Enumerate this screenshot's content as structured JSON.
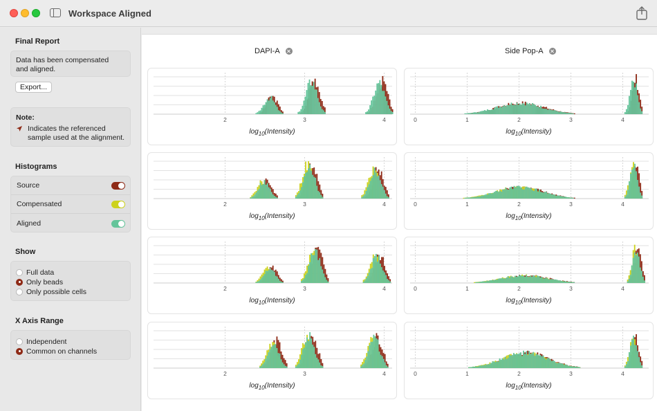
{
  "window": {
    "title": "Workspace Aligned"
  },
  "sidebar": {
    "final_report": {
      "title": "Final Report",
      "message_line1": "Data has been compensated",
      "message_line2": "and aligned.",
      "export_label": "Export..."
    },
    "note": {
      "title": "Note:",
      "line1": "Indicates the referenced",
      "line2": "sample used at the alignment."
    },
    "histograms": {
      "title": "Histograms",
      "items": [
        {
          "label": "Source",
          "on": true,
          "color": "#8e2a16"
        },
        {
          "label": "Compensated",
          "on": true,
          "color": "#cdd21d"
        },
        {
          "label": "Aligned",
          "on": true,
          "color": "#64c49a"
        }
      ]
    },
    "show": {
      "title": "Show",
      "options": [
        "Full data",
        "Only beads",
        "Only possible cells"
      ],
      "selected": "Only beads"
    },
    "x_axis_range": {
      "title": "X Axis Range",
      "options": [
        "Independent",
        "Common on channels"
      ],
      "selected": "Common on channels"
    }
  },
  "main": {
    "columns": [
      {
        "title": "DAPI-A",
        "tick_labels": [
          "2",
          "3",
          "4"
        ]
      },
      {
        "title": "Side Pop-A",
        "tick_labels": [
          "0",
          "1",
          "2",
          "3",
          "4"
        ]
      }
    ],
    "axis_label_prefix": "log",
    "axis_label_sub": "10",
    "axis_label_suffix": "(Intensity)"
  },
  "chart_data": [
    {
      "type": "bar",
      "channel": "DAPI-A",
      "row": 1,
      "xlabel": "log10(Intensity)",
      "xlim": [
        1.1,
        4.1
      ],
      "series": [
        {
          "name": "Source",
          "color": "#8e2a16"
        },
        {
          "name": "Aligned",
          "color": "#64c49a"
        }
      ],
      "peaks": [
        {
          "center": 2.55,
          "height": 0.45
        },
        {
          "center": 3.08,
          "height": 0.9
        },
        {
          "center": 3.93,
          "height": 0.85
        }
      ]
    },
    {
      "type": "bar",
      "channel": "DAPI-A",
      "row": 2,
      "xlabel": "log10(Intensity)",
      "xlim": [
        1.1,
        4.1
      ],
      "series": [
        {
          "name": "Source",
          "color": "#8e2a16"
        },
        {
          "name": "Compensated",
          "color": "#cdd21d"
        },
        {
          "name": "Aligned",
          "color": "#64c49a"
        }
      ],
      "peaks": [
        {
          "center": 2.48,
          "height": 0.45
        },
        {
          "center": 3.05,
          "height": 0.9
        },
        {
          "center": 3.88,
          "height": 0.75
        }
      ]
    },
    {
      "type": "bar",
      "channel": "DAPI-A",
      "row": 3,
      "xlabel": "log10(Intensity)",
      "xlim": [
        1.1,
        4.1
      ],
      "series": [
        {
          "name": "Source",
          "color": "#8e2a16"
        },
        {
          "name": "Compensated",
          "color": "#cdd21d"
        },
        {
          "name": "Aligned",
          "color": "#64c49a"
        }
      ],
      "peaks": [
        {
          "center": 2.55,
          "height": 0.4
        },
        {
          "center": 3.12,
          "height": 0.85
        },
        {
          "center": 3.9,
          "height": 0.7
        }
      ]
    },
    {
      "type": "bar",
      "channel": "DAPI-A",
      "row": 4,
      "xlabel": "log10(Intensity)",
      "xlim": [
        1.1,
        4.1
      ],
      "series": [
        {
          "name": "Source",
          "color": "#8e2a16"
        },
        {
          "name": "Compensated",
          "color": "#cdd21d"
        },
        {
          "name": "Aligned",
          "color": "#64c49a"
        }
      ],
      "peaks": [
        {
          "center": 2.6,
          "height": 0.7
        },
        {
          "center": 3.05,
          "height": 0.85
        },
        {
          "center": 3.87,
          "height": 0.8
        }
      ]
    },
    {
      "type": "bar",
      "channel": "Side Pop-A",
      "row": 1,
      "xlabel": "log10(Intensity)",
      "xlim": [
        -0.1,
        4.5
      ],
      "series": [
        {
          "name": "Source",
          "color": "#8e2a16"
        },
        {
          "name": "Aligned",
          "color": "#64c49a"
        }
      ],
      "peaks": [
        {
          "center": 2.0,
          "height": 0.3,
          "wide": true
        },
        {
          "center": 4.2,
          "height": 0.9
        }
      ]
    },
    {
      "type": "bar",
      "channel": "Side Pop-A",
      "row": 2,
      "xlabel": "log10(Intensity)",
      "xlim": [
        -0.1,
        4.5
      ],
      "series": [
        {
          "name": "Source",
          "color": "#8e2a16"
        },
        {
          "name": "Compensated",
          "color": "#cdd21d"
        },
        {
          "name": "Aligned",
          "color": "#64c49a"
        }
      ],
      "peaks": [
        {
          "center": 2.0,
          "height": 0.3,
          "wide": true
        },
        {
          "center": 4.2,
          "height": 0.9
        }
      ]
    },
    {
      "type": "bar",
      "channel": "Side Pop-A",
      "row": 3,
      "xlabel": "log10(Intensity)",
      "xlim": [
        -0.1,
        4.5
      ],
      "series": [
        {
          "name": "Source",
          "color": "#8e2a16"
        },
        {
          "name": "Compensated",
          "color": "#cdd21d"
        },
        {
          "name": "Aligned",
          "color": "#64c49a"
        }
      ],
      "peaks": [
        {
          "center": 2.1,
          "height": 0.2,
          "wide": true
        },
        {
          "center": 4.25,
          "height": 0.9
        }
      ]
    },
    {
      "type": "bar",
      "channel": "Side Pop-A",
      "row": 4,
      "xlabel": "log10(Intensity)",
      "xlim": [
        -0.1,
        4.5
      ],
      "series": [
        {
          "name": "Source",
          "color": "#8e2a16"
        },
        {
          "name": "Compensated",
          "color": "#cdd21d"
        },
        {
          "name": "Aligned",
          "color": "#64c49a"
        }
      ],
      "peaks": [
        {
          "center": 2.1,
          "height": 0.4,
          "wide": true
        },
        {
          "center": 4.2,
          "height": 0.8
        }
      ]
    }
  ]
}
